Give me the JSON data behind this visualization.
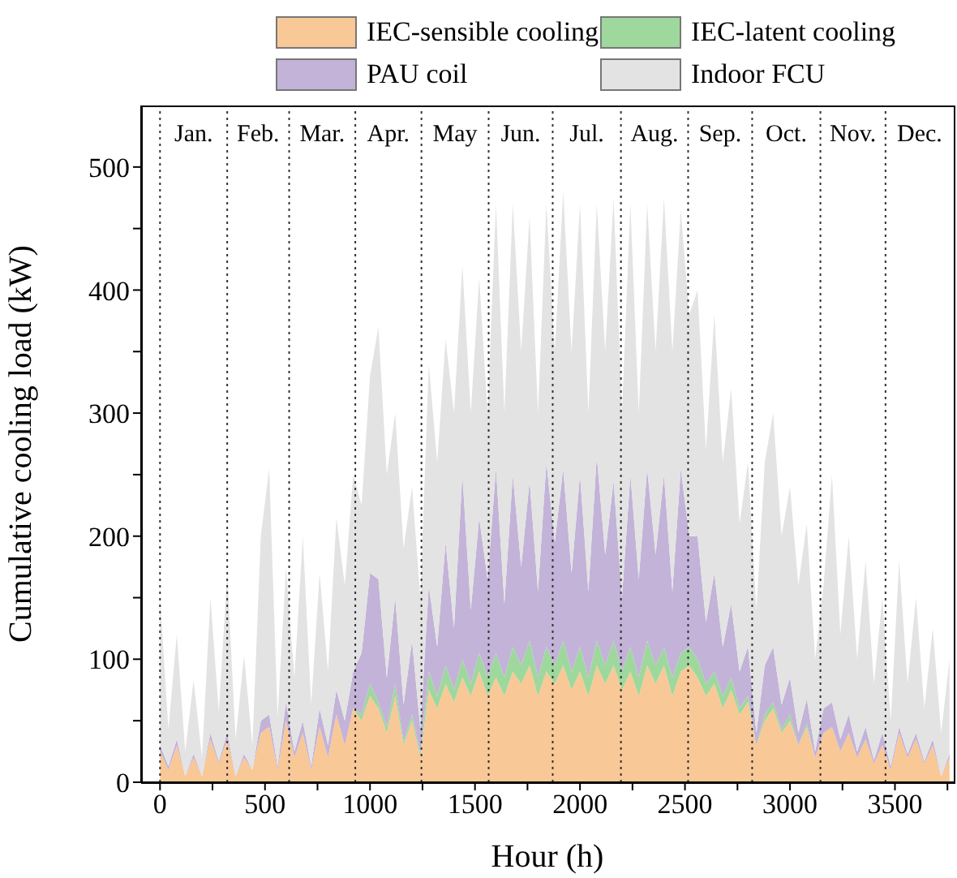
{
  "chart_data": {
    "type": "area",
    "stacked": true,
    "xlabel": "Hour (h)",
    "ylabel": "Cumulative cooling load (kW)",
    "legend": "top",
    "grid": false,
    "x": [
      0,
      40,
      80,
      120,
      160,
      200,
      240,
      280,
      320,
      360,
      400,
      440,
      480,
      520,
      560,
      600,
      640,
      680,
      720,
      760,
      800,
      840,
      880,
      920,
      960,
      1000,
      1040,
      1080,
      1120,
      1160,
      1200,
      1240,
      1280,
      1320,
      1360,
      1400,
      1440,
      1480,
      1520,
      1560,
      1600,
      1640,
      1680,
      1720,
      1760,
      1800,
      1840,
      1880,
      1920,
      1960,
      2000,
      2040,
      2080,
      2120,
      2160,
      2200,
      2240,
      2280,
      2320,
      2360,
      2400,
      2440,
      2480,
      2520,
      2560,
      2600,
      2640,
      2680,
      2720,
      2760,
      2800,
      2840,
      2880,
      2920,
      2960,
      3000,
      3040,
      3080,
      3120,
      3160,
      3200,
      3240,
      3280,
      3320,
      3360,
      3400,
      3440,
      3480,
      3520,
      3560,
      3600,
      3640,
      3680,
      3720,
      3760
    ],
    "series": [
      {
        "name": "IEC-sensible cooling",
        "color": "#f9c897",
        "values": [
          25,
          10,
          30,
          5,
          20,
          5,
          35,
          15,
          35,
          5,
          20,
          10,
          40,
          45,
          10,
          50,
          20,
          40,
          10,
          45,
          20,
          55,
          30,
          60,
          50,
          70,
          60,
          40,
          70,
          30,
          50,
          20,
          75,
          60,
          80,
          65,
          85,
          70,
          90,
          70,
          85,
          70,
          90,
          80,
          95,
          70,
          90,
          80,
          95,
          75,
          90,
          70,
          95,
          80,
          95,
          75,
          90,
          70,
          95,
          80,
          95,
          70,
          90,
          95,
          85,
          70,
          80,
          60,
          75,
          55,
          65,
          30,
          50,
          60,
          40,
          50,
          30,
          45,
          20,
          40,
          45,
          25,
          40,
          20,
          35,
          15,
          30,
          10,
          40,
          20,
          35,
          15,
          30,
          5,
          20
        ]
      },
      {
        "name": "IEC-latent cooling",
        "color": "#9ed89c",
        "values": [
          0,
          0,
          0,
          0,
          0,
          0,
          0,
          0,
          0,
          0,
          0,
          0,
          0,
          0,
          0,
          0,
          0,
          0,
          0,
          0,
          0,
          0,
          0,
          0,
          5,
          10,
          5,
          5,
          10,
          3,
          5,
          3,
          15,
          10,
          15,
          10,
          15,
          10,
          15,
          15,
          20,
          15,
          20,
          15,
          20,
          15,
          20,
          15,
          20,
          15,
          20,
          15,
          20,
          15,
          20,
          15,
          20,
          15,
          20,
          15,
          15,
          15,
          15,
          15,
          15,
          10,
          10,
          10,
          10,
          5,
          5,
          0,
          5,
          5,
          3,
          5,
          0,
          3,
          0,
          0,
          0,
          0,
          0,
          0,
          0,
          0,
          0,
          0,
          0,
          0,
          0,
          0,
          0,
          0,
          0
        ]
      },
      {
        "name": "PAU coil",
        "color": "#c3b3d8",
        "values": [
          5,
          3,
          5,
          0,
          3,
          0,
          5,
          2,
          5,
          0,
          3,
          0,
          10,
          10,
          3,
          15,
          5,
          10,
          3,
          15,
          10,
          20,
          20,
          30,
          50,
          90,
          100,
          40,
          70,
          30,
          60,
          20,
          70,
          40,
          100,
          50,
          150,
          60,
          110,
          80,
          150,
          60,
          140,
          80,
          130,
          70,
          150,
          100,
          140,
          80,
          140,
          70,
          150,
          90,
          130,
          60,
          140,
          80,
          140,
          90,
          140,
          70,
          150,
          90,
          100,
          50,
          80,
          40,
          60,
          30,
          40,
          10,
          40,
          45,
          20,
          30,
          10,
          20,
          5,
          20,
          20,
          10,
          15,
          5,
          10,
          3,
          10,
          3,
          5,
          3,
          5,
          2,
          5,
          0,
          3
        ]
      },
      {
        "name": "Indoor FCU",
        "color": "#e3e3e3",
        "values": [
          120,
          30,
          85,
          20,
          60,
          15,
          110,
          40,
          130,
          30,
          80,
          20,
          150,
          200,
          40,
          110,
          60,
          150,
          50,
          110,
          60,
          140,
          110,
          160,
          120,
          160,
          205,
          165,
          150,
          127,
          125,
          107,
          180,
          150,
          165,
          175,
          170,
          160,
          195,
          135,
          215,
          155,
          220,
          175,
          215,
          145,
          210,
          155,
          225,
          180,
          220,
          145,
          205,
          165,
          230,
          150,
          220,
          135,
          215,
          165,
          225,
          195,
          210,
          180,
          200,
          140,
          210,
          150,
          175,
          120,
          150,
          100,
          165,
          190,
          137,
          155,
          120,
          142,
          75,
          100,
          185,
          85,
          145,
          75,
          135,
          62,
          110,
          37,
          135,
          57,
          110,
          43,
          90,
          35,
          77
        ]
      }
    ],
    "xlim": [
      -90,
      3780
    ],
    "xticks": [
      0,
      {
        "value": 250,
        "label": null
      },
      500,
      {
        "value": 750,
        "label": null
      },
      1000,
      {
        "value": 1250,
        "label": null
      },
      1500,
      {
        "value": 1750,
        "label": null
      },
      2000,
      {
        "value": 2250,
        "label": null
      },
      2500,
      {
        "value": 2750,
        "label": null
      },
      3000,
      {
        "value": 3250,
        "label": null
      },
      3500,
      {
        "value": 3750,
        "label": null
      }
    ],
    "ylim": [
      0,
      550
    ],
    "yticks": [
      0,
      {
        "value": 50,
        "label": null
      },
      100,
      {
        "value": 150,
        "label": null
      },
      200,
      {
        "value": 250,
        "label": null
      },
      300,
      {
        "value": 350,
        "label": null
      },
      400,
      {
        "value": 450,
        "label": null
      },
      500
    ],
    "ref_lines": [
      {
        "axis": "x",
        "value": 0,
        "label": "Jan.",
        "line_style": "dotted",
        "color": "#333333"
      },
      {
        "axis": "x",
        "value": 320,
        "label": "Feb.",
        "line_style": "dotted",
        "color": "#333333"
      },
      {
        "axis": "x",
        "value": 615,
        "label": "Mar.",
        "line_style": "dotted",
        "color": "#333333"
      },
      {
        "axis": "x",
        "value": 930,
        "label": "Apr.",
        "line_style": "dotted",
        "color": "#333333"
      },
      {
        "axis": "x",
        "value": 1245,
        "label": "May",
        "line_style": "dotted",
        "color": "#333333"
      },
      {
        "axis": "x",
        "value": 1565,
        "label": "Jun.",
        "line_style": "dotted",
        "color": "#333333"
      },
      {
        "axis": "x",
        "value": 1870,
        "label": "Jul.",
        "line_style": "dotted",
        "color": "#333333"
      },
      {
        "axis": "x",
        "value": 2195,
        "label": "Aug.",
        "line_style": "dotted",
        "color": "#333333"
      },
      {
        "axis": "x",
        "value": 2515,
        "label": "Sep.",
        "line_style": "dotted",
        "color": "#333333"
      },
      {
        "axis": "x",
        "value": 2820,
        "label": "Oct.",
        "line_style": "dotted",
        "color": "#333333"
      },
      {
        "axis": "x",
        "value": 3145,
        "label": "Nov.",
        "line_style": "dotted",
        "color": "#333333"
      },
      {
        "axis": "x",
        "value": 3455,
        "label": "Dec.",
        "line_style": "dotted",
        "color": "#333333"
      }
    ]
  }
}
